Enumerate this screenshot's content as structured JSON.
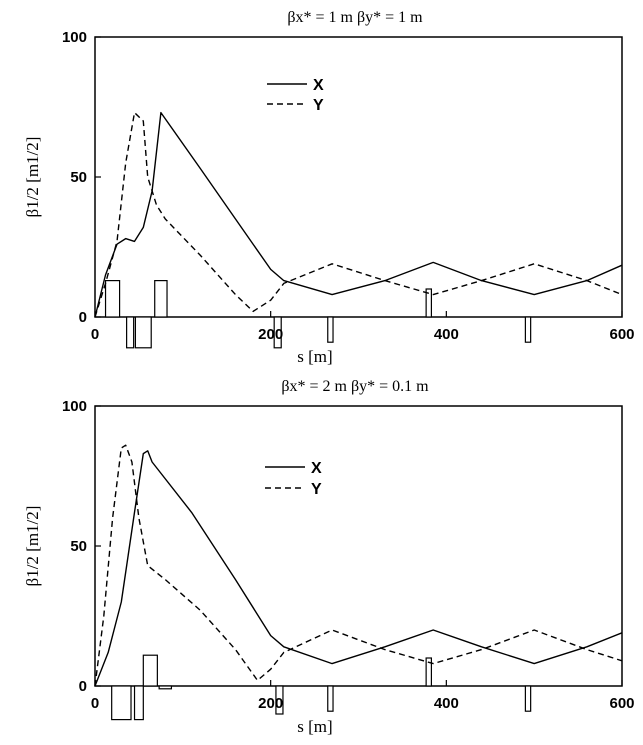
{
  "chart_data": [
    {
      "type": "line",
      "title": "βx* = 1 m    βy* = 1 m",
      "xlabel": "s [m]",
      "ylabel": "β1/2 [m1/2]",
      "xlim": [
        0,
        600
      ],
      "ylim": [
        0,
        100
      ],
      "xticks": [
        "0",
        "200",
        "400",
        "600"
      ],
      "yticks": [
        "0",
        "50",
        "100"
      ],
      "legend": "top-left",
      "series": [
        {
          "name": "X",
          "style": "solid",
          "x": [
            0,
            12,
            25,
            35,
            45,
            55,
            65,
            75,
            120,
            160,
            200,
            215,
            270,
            330,
            385,
            440,
            500,
            560,
            600
          ],
          "y": [
            0,
            15,
            26,
            28,
            27,
            32,
            45,
            73,
            53,
            35,
            17,
            13,
            8,
            13,
            19.5,
            13,
            8,
            13,
            18.5
          ]
        },
        {
          "name": "Y",
          "style": "dashed",
          "x": [
            0,
            12,
            25,
            35,
            45,
            55,
            60,
            65,
            70,
            80,
            120,
            160,
            180,
            200,
            215,
            270,
            330,
            385,
            440,
            500,
            560,
            600
          ],
          "y": [
            0,
            12,
            27,
            55,
            73,
            70,
            50,
            45,
            40,
            35,
            22,
            8,
            2,
            6,
            12,
            19,
            13,
            8,
            13,
            19,
            13,
            8
          ]
        }
      ],
      "elements": [
        {
          "s": 20,
          "width": 16,
          "value": 13
        },
        {
          "s": 40,
          "width": 8,
          "value": -11
        },
        {
          "s": 55,
          "width": 18,
          "value": -11
        },
        {
          "s": 75,
          "width": 14,
          "value": 13
        },
        {
          "s": 208,
          "width": 8,
          "value": -11
        },
        {
          "s": 268,
          "width": 6,
          "value": -9
        },
        {
          "s": 380,
          "width": 6,
          "value": 10
        },
        {
          "s": 493,
          "width": 6,
          "value": -9
        }
      ]
    },
    {
      "type": "line",
      "title": "βx* = 2 m    βy* = 0.1 m",
      "xlabel": "s [m]",
      "ylabel": "β1/2 [m1/2]",
      "xlim": [
        0,
        600
      ],
      "ylim": [
        0,
        100
      ],
      "xticks": [
        "0",
        "200",
        "400",
        "600"
      ],
      "yticks": [
        "0",
        "50",
        "100"
      ],
      "legend": "top-left",
      "series": [
        {
          "name": "X",
          "style": "solid",
          "x": [
            0,
            15,
            30,
            45,
            55,
            60,
            65,
            110,
            160,
            200,
            215,
            270,
            330,
            385,
            440,
            500,
            560,
            600
          ],
          "y": [
            0,
            12,
            30,
            62,
            83,
            84,
            80,
            62,
            38,
            18,
            14,
            8,
            14,
            20,
            14,
            8,
            14,
            19
          ]
        },
        {
          "name": "Y",
          "style": "dashed",
          "x": [
            0,
            10,
            20,
            30,
            35,
            42,
            50,
            60,
            80,
            120,
            160,
            185,
            200,
            215,
            270,
            330,
            385,
            440,
            500,
            560,
            600
          ],
          "y": [
            0,
            25,
            60,
            85,
            86,
            80,
            60,
            43,
            38,
            27,
            13,
            2,
            6,
            12,
            20,
            13,
            8,
            13,
            20,
            13,
            9
          ]
        }
      ],
      "elements": [
        {
          "s": 30,
          "width": 22,
          "value": -12
        },
        {
          "s": 50,
          "width": 10,
          "value": -12
        },
        {
          "s": 63,
          "width": 16,
          "value": 11
        },
        {
          "s": 80,
          "width": 14,
          "value": -1
        },
        {
          "s": 210,
          "width": 8,
          "value": -10
        },
        {
          "s": 268,
          "width": 6,
          "value": -9
        },
        {
          "s": 380,
          "width": 6,
          "value": 10
        },
        {
          "s": 493,
          "width": 6,
          "value": -9
        }
      ]
    }
  ]
}
